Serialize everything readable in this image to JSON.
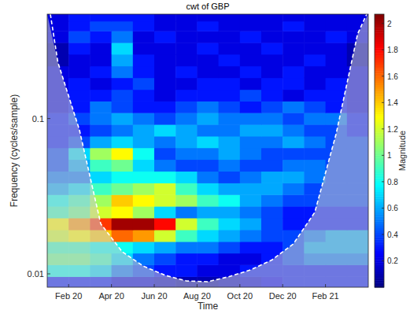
{
  "chart_data": {
    "type": "heatmap",
    "title": "cwt of GBP",
    "x_label": "Time",
    "y_label": "Frequency (cycles/sample)",
    "log": "y",
    "x": [
      "2020-01",
      "2020-02",
      "2020-03",
      "2020-04",
      "2020-05",
      "2020-06",
      "2020-07",
      "2020-08",
      "2020-09",
      "2020-10",
      "2020-11",
      "2020-12",
      "2021-01",
      "2021-02",
      "2021-03"
    ],
    "y": [
      0.0088,
      0.0105,
      0.0125,
      0.0148,
      0.0176,
      0.021,
      0.025,
      0.0297,
      0.0353,
      0.042,
      0.05,
      0.0595,
      0.0707,
      0.084,
      0.1,
      0.119,
      0.141,
      0.168,
      0.2,
      0.238,
      0.283,
      0.336,
      0.4,
      0.45
    ],
    "xlim": [
      "2020-01",
      "2021-04"
    ],
    "ylim": [
      0.0082,
      0.47
    ],
    "xticks": [
      {
        "value": "2020-02",
        "label": "Feb 20"
      },
      {
        "value": "2020-04",
        "label": "Apr 20"
      },
      {
        "value": "2020-06",
        "label": "Jun 20"
      },
      {
        "value": "2020-08",
        "label": "Aug 20"
      },
      {
        "value": "2020-10",
        "label": "Oct 20"
      },
      {
        "value": "2020-12",
        "label": "Dec 20"
      },
      {
        "value": "2021-02",
        "label": "Feb 21"
      }
    ],
    "yticks": [
      0.01,
      0.1
    ],
    "values": [
      [
        0.3,
        0.3,
        0.3,
        0.2,
        0.2,
        0.15,
        0.1,
        0.1,
        0.15,
        0.2,
        0.25,
        0.3,
        0.3,
        0.3,
        0.3
      ],
      [
        0.8,
        0.8,
        0.7,
        0.5,
        0.4,
        0.3,
        0.3,
        0.2,
        0.2,
        0.3,
        0.3,
        0.3,
        0.3,
        0.3,
        0.3
      ],
      [
        1.0,
        1.0,
        0.9,
        0.7,
        0.5,
        0.4,
        0.3,
        0.3,
        0.2,
        0.2,
        0.3,
        0.4,
        0.5,
        0.5,
        0.5
      ],
      [
        0.9,
        0.9,
        0.8,
        0.8,
        0.7,
        0.6,
        0.5,
        0.5,
        0.4,
        0.3,
        0.3,
        0.4,
        0.6,
        0.6,
        0.6
      ],
      [
        1.2,
        1.3,
        1.4,
        1.6,
        1.5,
        1.2,
        0.9,
        0.7,
        0.6,
        0.5,
        0.4,
        0.4,
        0.5,
        0.6,
        0.6
      ],
      [
        1.3,
        1.5,
        1.7,
        2.0,
        2.0,
        1.8,
        1.2,
        0.9,
        0.7,
        0.6,
        0.4,
        0.3,
        0.3,
        0.3,
        0.3
      ],
      [
        0.9,
        1.0,
        1.2,
        1.3,
        1.1,
        0.7,
        0.5,
        0.6,
        0.6,
        0.5,
        0.4,
        0.3,
        0.3,
        0.3,
        0.3
      ],
      [
        0.8,
        0.9,
        1.1,
        1.4,
        1.3,
        1.2,
        1.1,
        0.9,
        0.8,
        0.6,
        0.5,
        0.4,
        0.4,
        0.4,
        0.4
      ],
      [
        0.6,
        0.7,
        0.9,
        1.0,
        1.1,
        1.2,
        0.9,
        0.7,
        0.6,
        0.6,
        0.6,
        0.5,
        0.4,
        0.4,
        0.4
      ],
      [
        0.5,
        0.5,
        0.7,
        0.8,
        0.8,
        0.8,
        0.7,
        0.5,
        0.4,
        0.5,
        0.6,
        0.6,
        0.5,
        0.4,
        0.4
      ],
      [
        0.4,
        0.6,
        0.9,
        1.0,
        0.7,
        0.5,
        0.4,
        0.4,
        0.5,
        0.4,
        0.4,
        0.5,
        0.5,
        0.4,
        0.4
      ],
      [
        0.4,
        0.7,
        1.1,
        1.3,
        0.8,
        0.4,
        0.5,
        0.5,
        0.6,
        0.5,
        0.4,
        0.4,
        0.4,
        0.4,
        0.4
      ],
      [
        0.3,
        0.4,
        0.6,
        0.7,
        0.6,
        0.5,
        0.6,
        0.7,
        0.6,
        0.5,
        0.5,
        0.6,
        0.5,
        0.4,
        0.4
      ],
      [
        0.3,
        0.3,
        0.4,
        0.5,
        0.6,
        0.7,
        0.6,
        0.5,
        0.5,
        0.6,
        0.6,
        0.5,
        0.4,
        0.4,
        0.3
      ],
      [
        0.3,
        0.4,
        0.5,
        0.6,
        0.5,
        0.4,
        0.5,
        0.6,
        0.5,
        0.5,
        0.5,
        0.4,
        0.5,
        0.5,
        0.3
      ],
      [
        0.2,
        0.3,
        0.5,
        0.4,
        0.3,
        0.3,
        0.4,
        0.5,
        0.4,
        0.3,
        0.4,
        0.5,
        0.4,
        0.3,
        0.2
      ],
      [
        0.2,
        0.3,
        0.3,
        0.4,
        0.3,
        0.2,
        0.3,
        0.3,
        0.3,
        0.4,
        0.3,
        0.2,
        0.3,
        0.3,
        0.2
      ],
      [
        0.2,
        0.3,
        0.2,
        0.3,
        0.4,
        0.2,
        0.2,
        0.3,
        0.3,
        0.2,
        0.3,
        0.3,
        0.2,
        0.3,
        0.2
      ],
      [
        0.2,
        0.2,
        0.3,
        0.5,
        0.3,
        0.2,
        0.3,
        0.2,
        0.2,
        0.3,
        0.2,
        0.3,
        0.2,
        0.2,
        0.2
      ],
      [
        0.1,
        0.2,
        0.2,
        0.6,
        0.3,
        0.2,
        0.2,
        0.2,
        0.3,
        0.2,
        0.2,
        0.2,
        0.3,
        0.2,
        0.1
      ],
      [
        0.1,
        0.3,
        0.2,
        0.7,
        0.2,
        0.2,
        0.2,
        0.3,
        0.2,
        0.2,
        0.3,
        0.2,
        0.2,
        0.2,
        0.1
      ],
      [
        0.2,
        0.4,
        0.3,
        0.5,
        0.2,
        0.3,
        0.2,
        0.2,
        0.2,
        0.3,
        0.2,
        0.2,
        0.2,
        0.3,
        0.2
      ],
      [
        0.2,
        0.3,
        0.4,
        0.4,
        0.3,
        0.2,
        0.2,
        0.3,
        0.2,
        0.2,
        0.2,
        0.3,
        0.2,
        0.2,
        0.2
      ],
      [
        0.2,
        0.3,
        0.3,
        0.3,
        0.3,
        0.2,
        0.2,
        0.2,
        0.2,
        0.2,
        0.2,
        0.2,
        0.2,
        0.2,
        0.2
      ]
    ],
    "coi": [
      0.23,
      0.085,
      0.021,
      0.0139,
      0.0112,
      0.0098,
      0.009,
      0.0089,
      0.0096,
      0.0106,
      0.0123,
      0.0156,
      0.0249,
      0.08,
      0.35
    ],
    "colorbar_label": "Magnitude",
    "colorbar_lim": [
      0,
      2.07
    ],
    "colorbar_ticks": [
      0.2,
      0.4,
      0.6,
      0.8,
      1,
      1.2,
      1.4,
      1.6,
      1.8,
      2
    ]
  }
}
